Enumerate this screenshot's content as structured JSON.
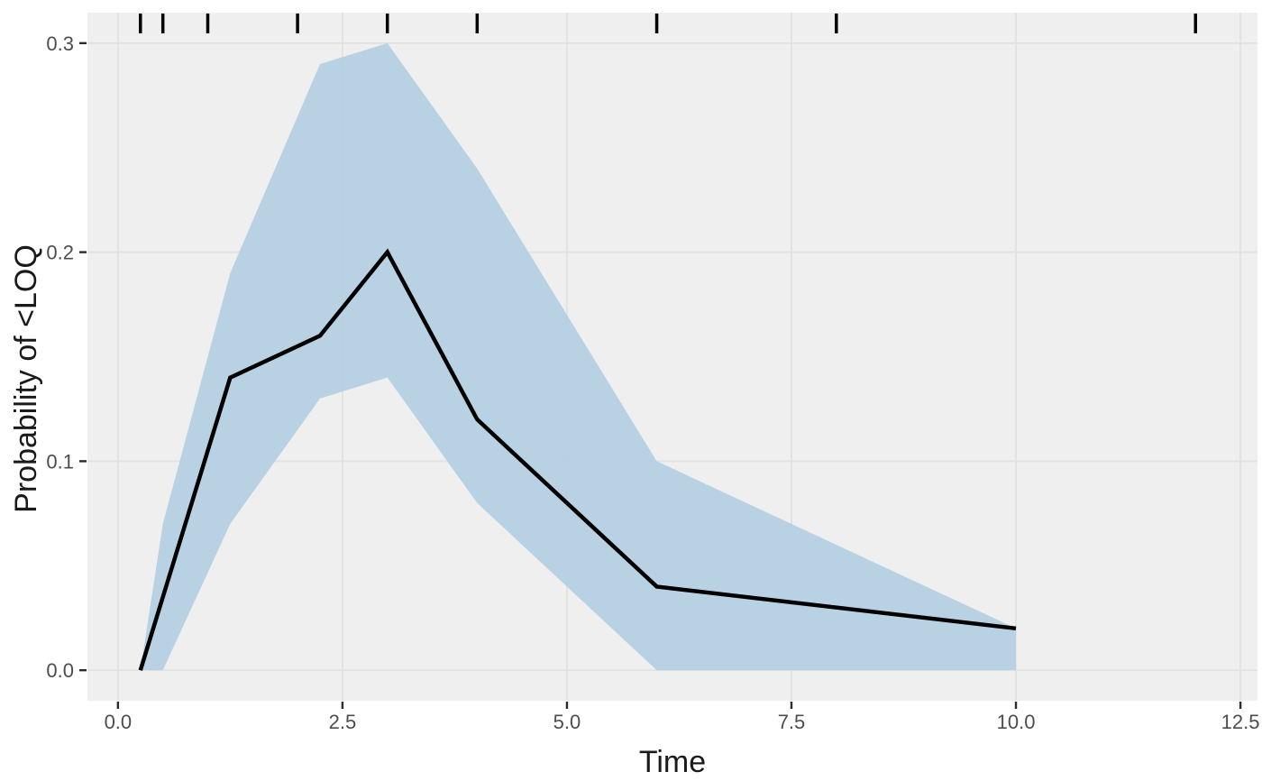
{
  "chart_data": {
    "type": "line",
    "title": "",
    "xlabel": "Time",
    "ylabel": "Probability of <LOQ",
    "x_ticks": [
      0,
      2.5,
      5,
      7.5,
      10,
      12.5
    ],
    "x_tick_labels": [
      "0.0",
      "2.5",
      "5.0",
      "7.5",
      "10.0",
      "12.5"
    ],
    "y_ticks": [
      0,
      0.1,
      0.2,
      0.3
    ],
    "y_tick_labels": [
      "0.0",
      "0.1",
      "0.2",
      "0.3"
    ],
    "xlim": [
      -0.34,
      12.69
    ],
    "ylim": [
      -0.0146,
      0.3146
    ],
    "grid": "major-only",
    "legend": "none",
    "series": [
      {
        "name": "median-probability",
        "type": "line",
        "x": [
          0.25,
          1.25,
          2.25,
          3,
          4,
          6,
          10
        ],
        "y": [
          0.0,
          0.14,
          0.16,
          0.2,
          0.12,
          0.04,
          0.02
        ],
        "color": "#000000",
        "stroke_width": 4.5
      },
      {
        "name": "confidence-ribbon",
        "type": "ribbon",
        "x": [
          0.25,
          0.5,
          1.25,
          2.25,
          3,
          4,
          6,
          10
        ],
        "upper": [
          0.0,
          0.07,
          0.19,
          0.29,
          0.3,
          0.24,
          0.1,
          0.02
        ],
        "lower": [
          0.0,
          0.0,
          0.07,
          0.13,
          0.14,
          0.08,
          0.0,
          0.0
        ],
        "color": "#B3CFE3",
        "opacity": 0.92
      },
      {
        "name": "observation-time-rug",
        "type": "rug",
        "x": [
          0.25,
          0.5,
          1,
          2,
          3,
          4,
          6,
          8,
          12
        ],
        "color": "#000000",
        "stroke_width": 3.5
      }
    ],
    "colors": {
      "panel_background": "#EFEFEF",
      "gridline": "#E2E2E2",
      "outer_background": "#FFFFFF",
      "tick_mark": "#2B2B2B",
      "tick_label": "#4D4D4D",
      "axis_title": "#1A1A1A"
    }
  }
}
